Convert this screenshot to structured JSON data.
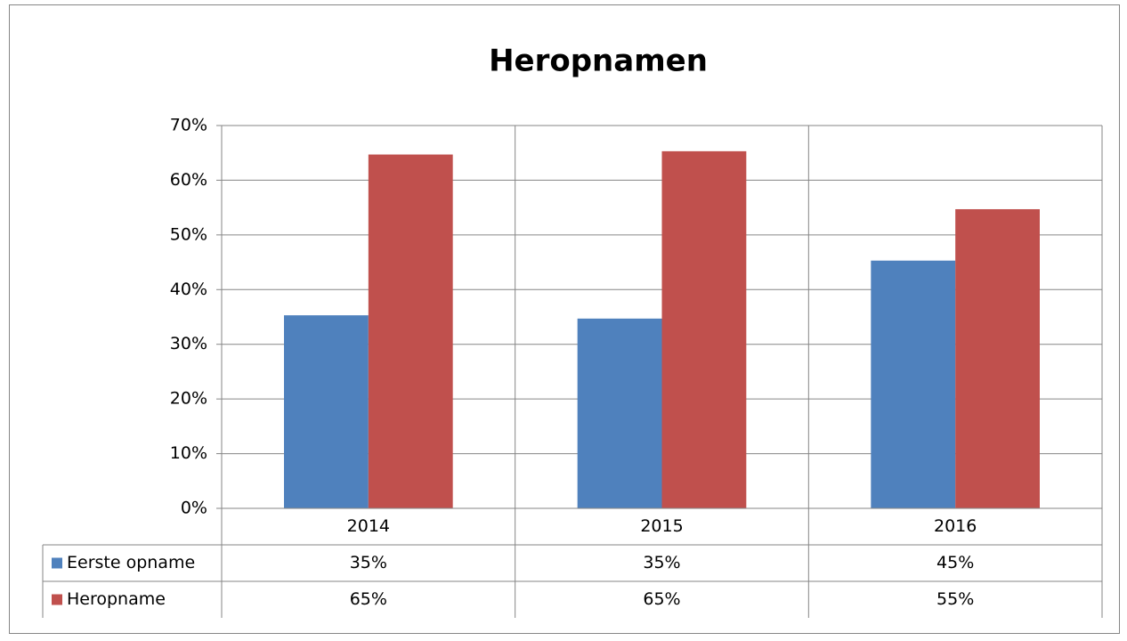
{
  "chart_data": {
    "type": "bar",
    "title": "Heropnamen",
    "categories": [
      "2014",
      "2015",
      "2016"
    ],
    "series": [
      {
        "name": "Eerste opname",
        "color": "#4f81bd",
        "values": [
          35.3,
          34.7,
          45.3
        ],
        "value_labels": [
          "35%",
          "35%",
          "45%"
        ]
      },
      {
        "name": "Heropname",
        "color": "#c0504d",
        "values": [
          64.7,
          65.3,
          54.7
        ],
        "value_labels": [
          "65%",
          "65%",
          "55%"
        ]
      }
    ],
    "ylim": [
      0,
      70
    ],
    "yticks": [
      {
        "value": 0,
        "label": "0%"
      },
      {
        "value": 10,
        "label": "10%"
      },
      {
        "value": 20,
        "label": "20%"
      },
      {
        "value": 30,
        "label": "30%"
      },
      {
        "value": 40,
        "label": "40%"
      },
      {
        "value": 50,
        "label": "50%"
      },
      {
        "value": 60,
        "label": "60%"
      },
      {
        "value": 70,
        "label": "70%"
      }
    ],
    "grid": true
  }
}
